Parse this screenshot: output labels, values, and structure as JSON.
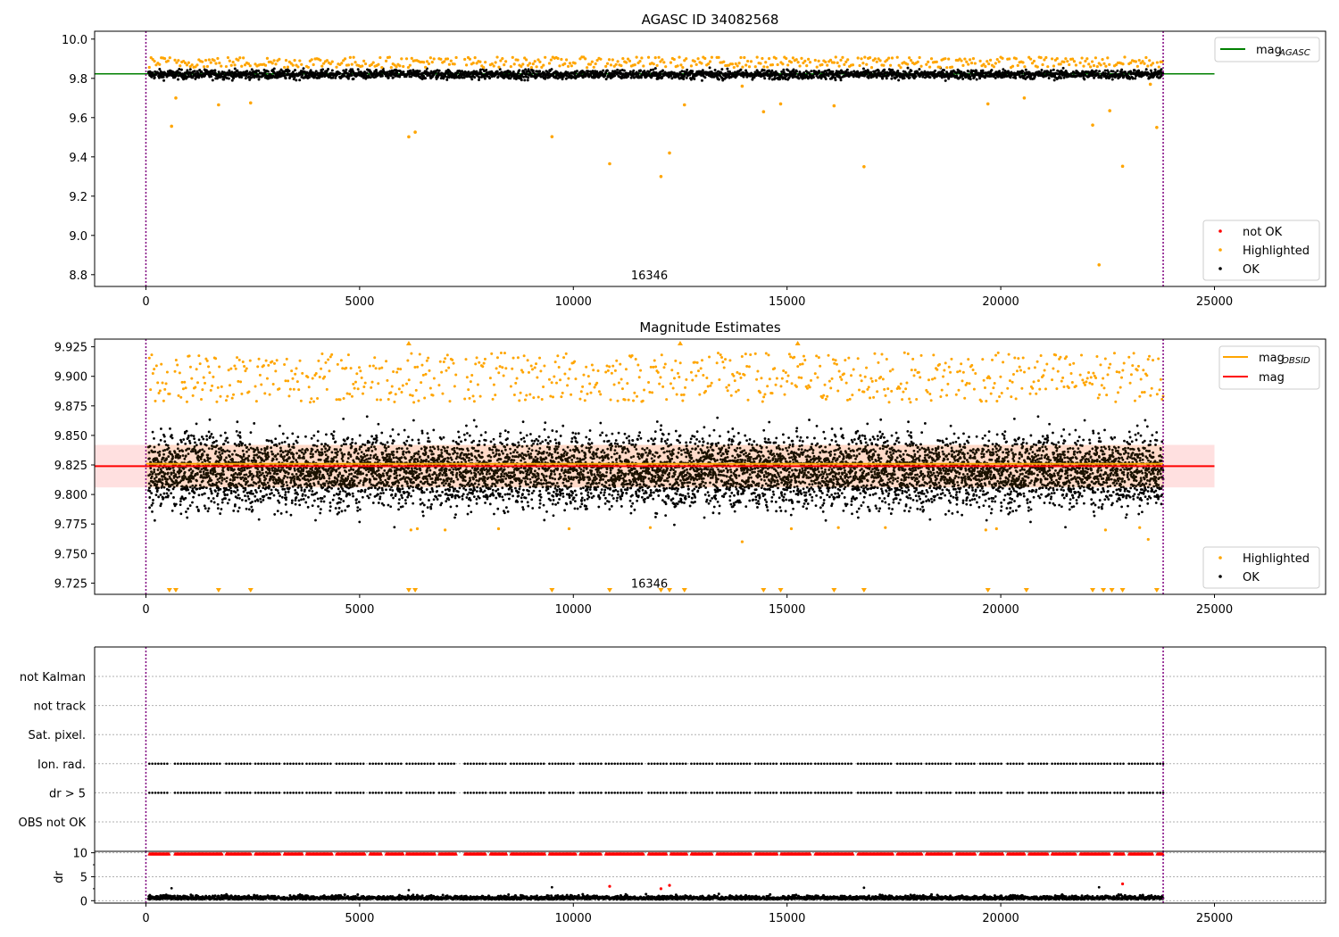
{
  "chart_data": [
    {
      "type": "scatter",
      "title": "AGASC ID 34082568",
      "xlabel": "",
      "ylabel": "",
      "xlim": [
        -1200,
        27600
      ],
      "ylim": [
        8.74,
        10.04
      ],
      "xticks": [
        0,
        5000,
        10000,
        15000,
        20000,
        25000
      ],
      "yticks": [
        8.8,
        9.0,
        9.2,
        9.4,
        9.6,
        9.8,
        10.0
      ],
      "ytick_labels": [
        "8.8",
        "9.0",
        "9.2",
        "9.4",
        "9.6",
        "9.8",
        "10.0"
      ],
      "vlines": [
        0,
        23800
      ],
      "annotation": {
        "x": 11780,
        "y": 8.8,
        "text": "16346"
      },
      "hlines": [
        {
          "name": "mag_AGASC",
          "y": 9.823,
          "x0": -1200,
          "x1": 25000,
          "color": "#008000"
        }
      ],
      "band": {
        "center": 9.82,
        "spread": 0.026
      },
      "highlight": {
        "lo": 9.855,
        "hi": 9.915
      },
      "outliers": [
        [
          600,
          9.556
        ],
        [
          700,
          9.7
        ],
        [
          1700,
          9.665
        ],
        [
          2450,
          9.675
        ],
        [
          6150,
          9.502
        ],
        [
          6300,
          9.526
        ],
        [
          9500,
          9.503
        ],
        [
          10850,
          9.365
        ],
        [
          12050,
          9.3
        ],
        [
          12250,
          9.42
        ],
        [
          12600,
          9.665
        ],
        [
          13950,
          9.76
        ],
        [
          14450,
          9.63
        ],
        [
          14850,
          9.67
        ],
        [
          16100,
          9.66
        ],
        [
          16800,
          9.35
        ],
        [
          19700,
          9.67
        ],
        [
          20550,
          9.7
        ],
        [
          22150,
          9.562
        ],
        [
          22300,
          8.85
        ],
        [
          22550,
          9.635
        ],
        [
          22850,
          9.352
        ],
        [
          23500,
          9.77
        ],
        [
          23650,
          9.55
        ]
      ],
      "legend_lines": [
        {
          "label": "mag",
          "sub": "AGASC",
          "color": "#008000"
        }
      ],
      "legend_points": [
        {
          "label": "not OK",
          "color": "#ff0000"
        },
        {
          "label": "Highlighted",
          "color": "#ffa500"
        },
        {
          "label": "OK",
          "color": "#000000"
        }
      ]
    },
    {
      "type": "scatter",
      "title": "Magnitude Estimates",
      "xlabel": "",
      "ylabel": "",
      "xlim": [
        -1200,
        27600
      ],
      "ylim": [
        9.7155,
        9.9315
      ],
      "xticks": [
        0,
        5000,
        10000,
        15000,
        20000,
        25000
      ],
      "yticks": [
        9.725,
        9.75,
        9.775,
        9.8,
        9.825,
        9.85,
        9.875,
        9.9,
        9.925
      ],
      "ytick_labels": [
        "9.725",
        "9.750",
        "9.775",
        "9.800",
        "9.825",
        "9.850",
        "9.875",
        "9.900",
        "9.925"
      ],
      "vlines": [
        0,
        23800
      ],
      "annotation": {
        "x": 11780,
        "y": 9.725,
        "text": "16346"
      },
      "hlines": [
        {
          "name": "mag",
          "y": 9.824,
          "x0": -1200,
          "x1": 25000,
          "color": "#ff0000"
        },
        {
          "name": "mag_OBSID",
          "y": 9.826,
          "x0": 0,
          "x1": 23800,
          "color": "#ffa500"
        }
      ],
      "mag_band": {
        "lo": 9.806,
        "hi": 9.842,
        "x0": -1200,
        "x1": 25000
      },
      "band": {
        "center": 9.82,
        "spread": 0.015
      },
      "highlight": {
        "lo": 9.878,
        "hi": 9.92
      },
      "outliers": [
        [
          6200,
          9.77
        ],
        [
          6350,
          9.771
        ],
        [
          8250,
          9.771
        ],
        [
          9900,
          9.771
        ],
        [
          13950,
          9.76
        ],
        [
          15100,
          9.771
        ],
        [
          16200,
          9.772
        ],
        [
          19650,
          9.77
        ],
        [
          19900,
          9.771
        ],
        [
          22450,
          9.77
        ],
        [
          23250,
          9.772
        ],
        [
          23450,
          9.762
        ],
        [
          7000,
          9.77
        ],
        [
          11800,
          9.772
        ],
        [
          17300,
          9.772
        ]
      ],
      "up_markers": [
        6150,
        12500,
        15250
      ],
      "down_markers": [
        550,
        700,
        1700,
        2450,
        6150,
        6300,
        9500,
        10850,
        12050,
        12250,
        12600,
        14450,
        14850,
        16100,
        16800,
        19700,
        20600,
        22150,
        22400,
        22600,
        22850,
        23650
      ],
      "legend_lines": [
        {
          "label": "mag",
          "sub": "OBSID",
          "color": "#ffa500"
        },
        {
          "label": "mag",
          "sub": "",
          "color": "#ff0000"
        }
      ],
      "legend_points": [
        {
          "label": "Highlighted",
          "color": "#ffa500"
        },
        {
          "label": "OK",
          "color": "#000000"
        }
      ]
    },
    {
      "type": "scatter",
      "title": "",
      "xlabel": "",
      "ylabel": "",
      "xlim": [
        -1200,
        27600
      ],
      "flag_labels": [
        "not Kalman",
        "not track",
        "Sat. pixel.",
        "Ion. rad.",
        "dr > 5",
        "OBS not OK"
      ],
      "flag_rows_with_points": [
        "Ion. rad.",
        "dr > 5"
      ],
      "vlines": [
        0,
        23800
      ]
    },
    {
      "type": "scatter",
      "title": "",
      "xlabel": "",
      "ylabel": "dr",
      "xlim": [
        -1200,
        27600
      ],
      "ylim": [
        -0.5,
        10.3
      ],
      "yticks": [
        0,
        5,
        10
      ],
      "ytick_labels": [
        "0",
        "5",
        "10"
      ],
      "xticks": [
        0,
        5000,
        10000,
        15000,
        20000,
        25000
      ],
      "xtick_labels": [
        "0",
        "5000",
        "10000",
        "15000",
        "20000",
        "25000"
      ],
      "capped_value": 9.8,
      "vlines": [
        0,
        23800
      ],
      "red_points": [
        [
          10850,
          3.0
        ],
        [
          12050,
          2.5
        ],
        [
          12250,
          3.2
        ],
        [
          22850,
          3.5
        ]
      ],
      "black_high_points": [
        [
          600,
          2.6
        ],
        [
          6150,
          2.2
        ],
        [
          9500,
          2.8
        ],
        [
          16800,
          2.7
        ],
        [
          22300,
          2.8
        ]
      ]
    }
  ],
  "segments": [
    [
      80,
      560
    ],
    [
      680,
      1780
    ],
    [
      1880,
      2460
    ],
    [
      2560,
      3140
    ],
    [
      3240,
      3660
    ],
    [
      3760,
      4360
    ],
    [
      4460,
      5140
    ],
    [
      5240,
      5520
    ],
    [
      5620,
      6020
    ],
    [
      6100,
      6760
    ],
    [
      6860,
      7260
    ],
    [
      7460,
      7960
    ],
    [
      8060,
      8440
    ],
    [
      8540,
      9340
    ],
    [
      9440,
      10060
    ],
    [
      10160,
      10660
    ],
    [
      10760,
      11660
    ],
    [
      11760,
      12180
    ],
    [
      12280,
      12660
    ],
    [
      12760,
      13260
    ],
    [
      13360,
      14160
    ],
    [
      14260,
      14780
    ],
    [
      14860,
      15560
    ],
    [
      15660,
      16560
    ],
    [
      16660,
      17480
    ],
    [
      17580,
      18160
    ],
    [
      18260,
      18860
    ],
    [
      18960,
      19420
    ],
    [
      19520,
      20060
    ],
    [
      20160,
      20560
    ],
    [
      20660,
      21100
    ],
    [
      21200,
      21760
    ],
    [
      21860,
      22560
    ],
    [
      22660,
      22900
    ],
    [
      23000,
      23560
    ],
    [
      23660,
      23800
    ]
  ],
  "colors": {
    "ok": "#000000",
    "highlighted": "#ffa500",
    "not_ok": "#ff0000",
    "vline": "#800080"
  }
}
